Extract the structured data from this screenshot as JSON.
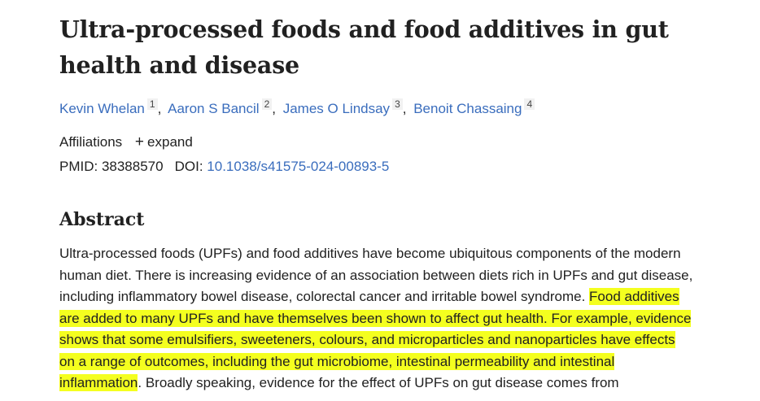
{
  "title_lines": [
    "Ultra-processed foods and food additives in gut",
    "health and disease"
  ],
  "authors": [
    {
      "name": "Kevin Whelan",
      "aff": "1"
    },
    {
      "name": "Aaron S Bancil",
      "aff": "2"
    },
    {
      "name": "James O Lindsay",
      "aff": "3"
    },
    {
      "name": "Benoit Chassaing",
      "aff": "4"
    }
  ],
  "affiliations": {
    "label": "Affiliations",
    "expand_icon": "plus-icon",
    "expand_label": "expand"
  },
  "ids": {
    "pmid_label": "PMID: 38388570",
    "doi_label": "DOI:",
    "doi": "10.1038/s41575-024-00893-5"
  },
  "abstract_heading": "Abstract",
  "abstract": {
    "l1": "Ultra-processed foods (UPFs) and food additives have become ubiquitous components of the modern",
    "l2": "human diet. There is increasing evidence of an association between diets rich in UPFs and gut disease,",
    "l3_plain": "including inflammatory bowel disease, colorectal cancer and irritable bowel syndrome. ",
    "l3_mark": "Food additives",
    "l4_mark": "are added to many UPFs and have themselves been shown to affect gut health. For example, evidence",
    "l5_mark": "shows that some emulsifiers, sweeteners, colours, and microparticles and nanoparticles have effects",
    "l6_mark": "on a range of outcomes, including the gut microbiome, intestinal permeability and intestinal",
    "l7_mark": "inflammation",
    "l7_plain": ". Broadly speaking, evidence for the effect of UPFs on gut disease comes from"
  },
  "colors": {
    "link": "#3a6dbd",
    "highlight": "#f4ff1f",
    "text": "#212121"
  }
}
